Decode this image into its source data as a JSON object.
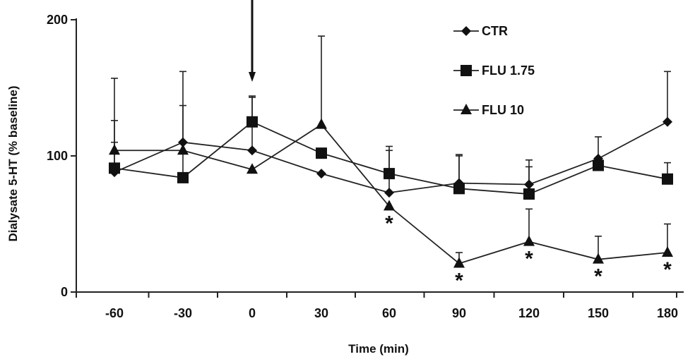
{
  "chart_data": {
    "type": "line",
    "xlabel": "Time (min)",
    "ylabel": "Dialysate 5-HT (% baseline)",
    "x": [
      -60,
      -30,
      0,
      30,
      60,
      90,
      120,
      150,
      180
    ],
    "x_tick_labels": [
      "-60",
      "-30",
      "0",
      "30",
      "60",
      "90",
      "120",
      "150",
      "180"
    ],
    "ylim": [
      0,
      200
    ],
    "y_ticks": [
      0,
      100,
      200
    ],
    "y_tick_labels": [
      "0",
      "100",
      "200"
    ],
    "grid": false,
    "legend_position": "top-right",
    "series": [
      {
        "name": "CTR",
        "marker": "diamond",
        "values": [
          88,
          110,
          104,
          87,
          73,
          80,
          79,
          98,
          125
        ],
        "error_upper": [
          157,
          162,
          143,
          null,
          107,
          101,
          97,
          114,
          162
        ]
      },
      {
        "name": "FLU 1.75",
        "marker": "square",
        "values": [
          91,
          84,
          125,
          102,
          87,
          76,
          72,
          93,
          83
        ],
        "error_upper": [
          126,
          137,
          144,
          null,
          104,
          100,
          92,
          null,
          95
        ]
      },
      {
        "name": "FLU 10",
        "marker": "triangle",
        "values": [
          104,
          104,
          90,
          123,
          63,
          21,
          37,
          24,
          29
        ],
        "error_upper": [
          110,
          110,
          null,
          188,
          null,
          29,
          61,
          41,
          50
        ]
      }
    ],
    "significance_markers": [
      {
        "x": 60,
        "label": "*"
      },
      {
        "x": 90,
        "label": "*"
      },
      {
        "x": 120,
        "label": "*"
      },
      {
        "x": 150,
        "label": "*"
      },
      {
        "x": 180,
        "label": "*"
      }
    ],
    "annotations": [
      {
        "type": "arrow",
        "x": 0,
        "direction": "down"
      }
    ]
  }
}
